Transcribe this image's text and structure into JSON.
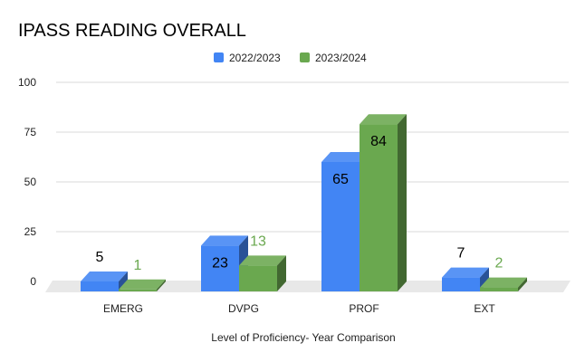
{
  "chart_data": {
    "type": "bar",
    "title": "IPASS READING OVERALL",
    "xlabel": "Level of Proficiency- Year Comparison",
    "ylabel": "",
    "ylim": [
      0,
      100
    ],
    "yticks": [
      0,
      25,
      50,
      75,
      100
    ],
    "grid": true,
    "legend": "top-center",
    "categories": [
      "EMERG",
      "DVPG",
      "PROF",
      "EXT"
    ],
    "series": [
      {
        "name": "2022/2023",
        "values": [
          5,
          23,
          65,
          7
        ],
        "color": "#4285f4",
        "label_color": "#000000"
      },
      {
        "name": "2023/2024",
        "values": [
          1,
          13,
          84,
          2
        ],
        "color": "#6aa84f",
        "label_color": "#6aa84f"
      }
    ]
  }
}
